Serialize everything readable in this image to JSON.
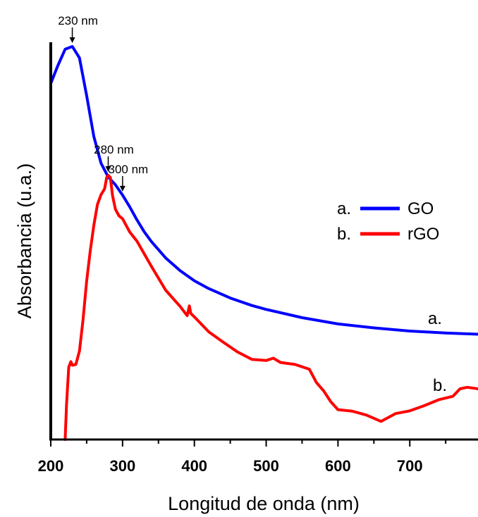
{
  "chart_data": {
    "type": "line",
    "xlabel": "Longitud de onda (nm)",
    "ylabel": "Absorbancia (u.a.)",
    "xlim": [
      200,
      795
    ],
    "ylim": [
      0,
      1
    ],
    "x_ticks": [
      "200",
      "300",
      "400",
      "500",
      "600",
      "700"
    ],
    "x_tick_values": [
      200,
      300,
      400,
      500,
      600,
      700
    ],
    "y_ticks": [],
    "grid": false,
    "legend_position": "right",
    "legend": [
      {
        "prefix": "a.",
        "name": "GO",
        "color": "#0000ff"
      },
      {
        "prefix": "b.",
        "name": "rGO",
        "color": "#ff0000"
      }
    ],
    "series": [
      {
        "name": "GO",
        "label": "a.",
        "color": "#0000ff",
        "x": [
          200,
          210,
          220,
          230,
          240,
          250,
          260,
          270,
          280,
          290,
          300,
          310,
          320,
          330,
          340,
          360,
          380,
          400,
          420,
          450,
          480,
          500,
          550,
          600,
          650,
          700,
          750,
          795
        ],
        "y": [
          0.906,
          0.952,
          0.993,
          1.0,
          0.971,
          0.875,
          0.771,
          0.703,
          0.668,
          0.648,
          0.622,
          0.592,
          0.559,
          0.529,
          0.504,
          0.462,
          0.43,
          0.404,
          0.384,
          0.36,
          0.341,
          0.331,
          0.31,
          0.294,
          0.284,
          0.276,
          0.271,
          0.268
        ]
      },
      {
        "name": "rGO",
        "label": "b.",
        "color": "#ff0000",
        "x": [
          220,
          222,
          225,
          228,
          230,
          235,
          240,
          245,
          250,
          255,
          260,
          265,
          270,
          275,
          278,
          280,
          283,
          286,
          290,
          295,
          300,
          310,
          320,
          340,
          360,
          380,
          390,
          393,
          395,
          400,
          420,
          440,
          460,
          480,
          500,
          510,
          520,
          540,
          560,
          570,
          580,
          590,
          600,
          620,
          640,
          660,
          680,
          700,
          720,
          740,
          760,
          770,
          780,
          795
        ],
        "y": [
          0.0,
          0.09,
          0.184,
          0.198,
          0.189,
          0.191,
          0.225,
          0.305,
          0.403,
          0.48,
          0.545,
          0.598,
          0.623,
          0.638,
          0.667,
          0.672,
          0.667,
          0.621,
          0.586,
          0.569,
          0.562,
          0.528,
          0.505,
          0.441,
          0.38,
          0.339,
          0.315,
          0.34,
          0.321,
          0.312,
          0.274,
          0.248,
          0.223,
          0.204,
          0.201,
          0.207,
          0.196,
          0.191,
          0.179,
          0.145,
          0.124,
          0.096,
          0.076,
          0.072,
          0.062,
          0.046,
          0.066,
          0.073,
          0.086,
          0.101,
          0.11,
          0.129,
          0.133,
          0.129
        ]
      }
    ],
    "annotations": [
      {
        "text": "230 nm",
        "x": 230,
        "series": 0
      },
      {
        "text": "300 nm",
        "x": 300,
        "series": 0
      },
      {
        "text": "280 nm",
        "x": 280,
        "series": 1
      }
    ],
    "curve_labels": [
      {
        "text": "a.",
        "x": 735,
        "series": 0
      },
      {
        "text": "b.",
        "x": 742,
        "series": 1
      }
    ]
  }
}
